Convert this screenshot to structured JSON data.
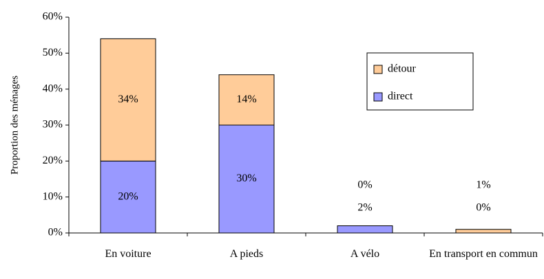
{
  "chart_data": {
    "type": "stacked_bar",
    "y_label": "Proportion des ménages",
    "categories": [
      "En voiture",
      "A pieds",
      "A vélo",
      "En transport en commun"
    ],
    "series": [
      {
        "name": "direct",
        "color": "#9999ff",
        "values": [
          20,
          30,
          2,
          0
        ],
        "value_labels": [
          "20%",
          "30%",
          "2%",
          "0%"
        ]
      },
      {
        "name": "détour",
        "color": "#ffcc99",
        "values": [
          34,
          14,
          0,
          1
        ],
        "value_labels": [
          "34%",
          "14%",
          "0%",
          "1%"
        ]
      }
    ],
    "ylim": [
      0,
      60
    ],
    "yticks": [
      {
        "value": 0,
        "label": "0%"
      },
      {
        "value": 10,
        "label": "10%"
      },
      {
        "value": 20,
        "label": "20%"
      },
      {
        "value": 30,
        "label": "30%"
      },
      {
        "value": 40,
        "label": "40%"
      },
      {
        "value": 50,
        "label": "50%"
      },
      {
        "value": 60,
        "label": "60%"
      }
    ],
    "legend": "upper right"
  }
}
